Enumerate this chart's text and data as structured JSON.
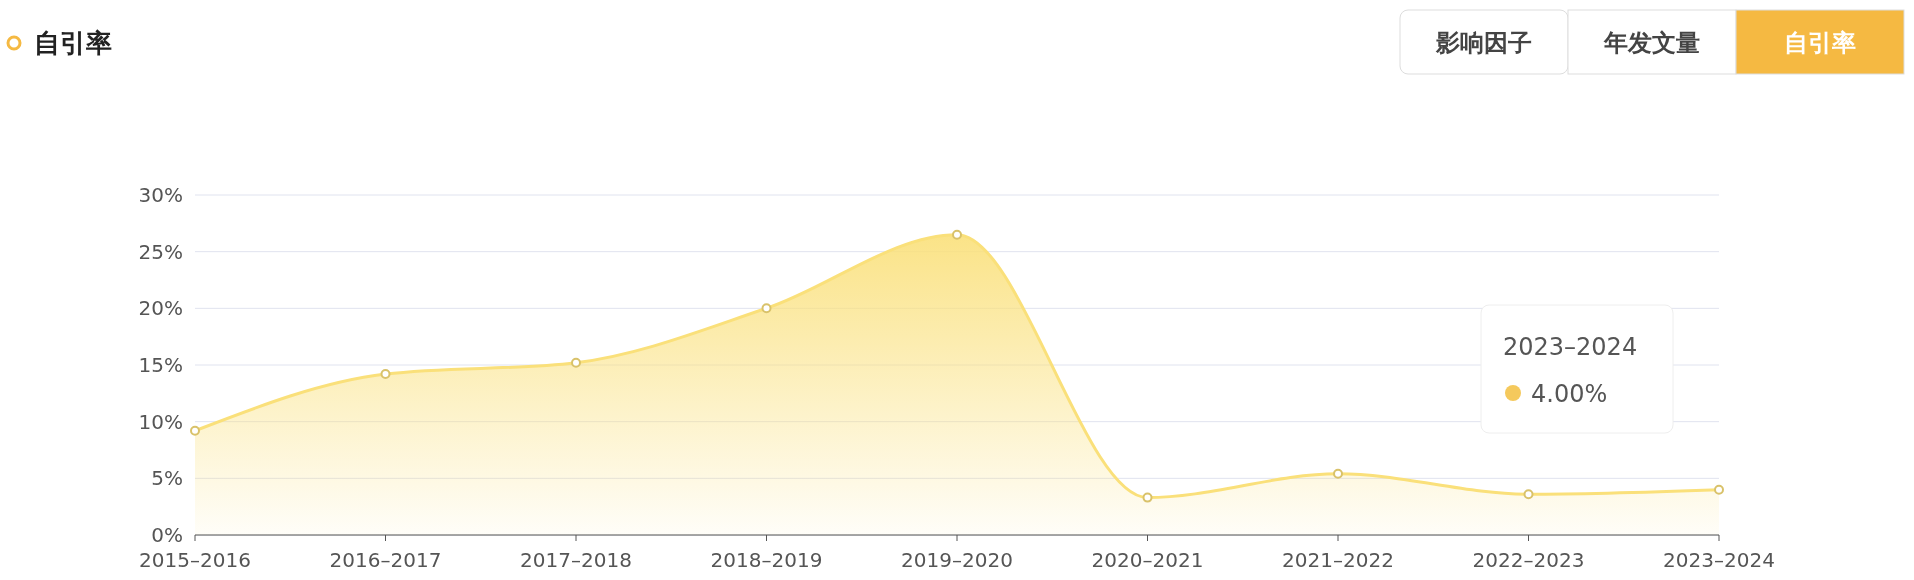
{
  "chart_data": {
    "type": "area",
    "title": "自引率",
    "categories": [
      "2015–2016",
      "2016–2017",
      "2017–2018",
      "2018–2019",
      "2019–2020",
      "2020–2021",
      "2021–2022",
      "2022–2023",
      "2023–2024"
    ],
    "series": [
      {
        "color": "#fae07a",
        "values": [
          9.2,
          14.2,
          15.2,
          20.0,
          26.5,
          3.3,
          5.4,
          3.6,
          4.0
        ]
      }
    ],
    "ylim": [
      0,
      30
    ],
    "yticks": [
      {
        "value": 0,
        "label": "0%"
      },
      {
        "value": 5,
        "label": "5%"
      },
      {
        "value": 10,
        "label": "10%"
      },
      {
        "value": 15,
        "label": "15%"
      },
      {
        "value": 20,
        "label": "20%"
      },
      {
        "value": 25,
        "label": "25%"
      },
      {
        "value": 30,
        "label": "30%"
      }
    ],
    "grid": "y",
    "marker": "circle",
    "annotations": [
      "影响因子",
      "年发文量",
      "自引率",
      "2023–2024",
      "4.00%"
    ]
  }
}
